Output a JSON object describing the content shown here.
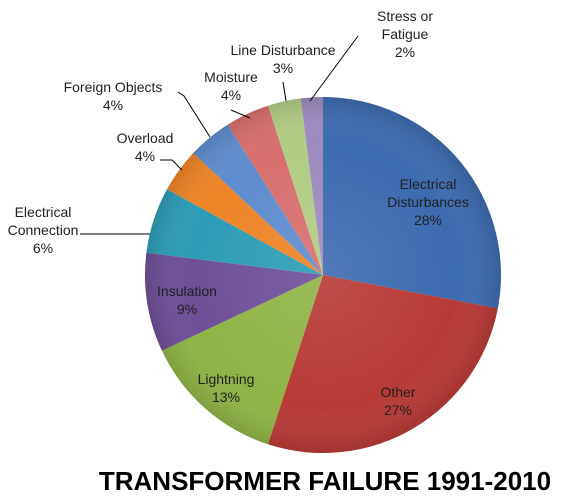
{
  "chart_data": {
    "type": "pie",
    "title": "TRANSFORMER FAILURE 1991-2010",
    "legend": "none",
    "slices": [
      {
        "label_lines": [
          "Electrical",
          "Disturbances"
        ],
        "value": 28,
        "value_text": "28%",
        "color": "#3d6bb0"
      },
      {
        "label_lines": [
          "Other"
        ],
        "value": 27,
        "value_text": "27%",
        "color": "#b83a36"
      },
      {
        "label_lines": [
          "Lightning"
        ],
        "value": 13,
        "value_text": "13%",
        "color": "#8fb446"
      },
      {
        "label_lines": [
          "Insulation"
        ],
        "value": 9,
        "value_text": "9%",
        "color": "#6e4f98"
      },
      {
        "label_lines": [
          "Electrical",
          "Connection"
        ],
        "value": 6,
        "value_text": "6%",
        "color": "#2d9cb6"
      },
      {
        "label_lines": [
          "Overload"
        ],
        "value": 4,
        "value_text": "4%",
        "color": "#ee8427"
      },
      {
        "label_lines": [
          "Foreign Objects"
        ],
        "value": 4,
        "value_text": "4%",
        "color": "#5f8cce"
      },
      {
        "label_lines": [
          "Moisture"
        ],
        "value": 4,
        "value_text": "4%",
        "color": "#d76f6e"
      },
      {
        "label_lines": [
          "Line Disturbance"
        ],
        "value": 3,
        "value_text": "3%",
        "color": "#b1cc83"
      },
      {
        "label_lines": [
          "Stress or",
          "Fatigue"
        ],
        "value": 2,
        "value_text": "2%",
        "color": "#9d8bbf"
      }
    ]
  }
}
